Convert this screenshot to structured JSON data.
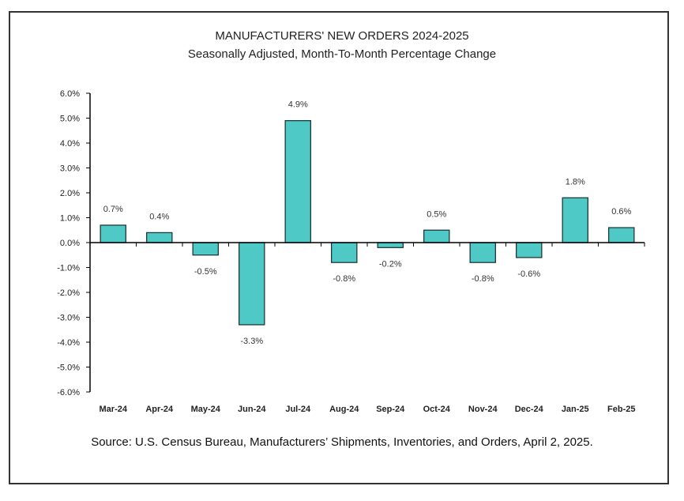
{
  "chart_data": {
    "type": "bar",
    "title": "MANUFACTURERS' NEW ORDERS 2024-2025",
    "subtitle": "Seasonally Adjusted,  Month-To-Month Percentage Change",
    "xlabel": "",
    "ylabel": "",
    "categories": [
      "Mar-24",
      "Apr-24",
      "May-24",
      "Jun-24",
      "Jul-24",
      "Aug-24",
      "Sep-24",
      "Oct-24",
      "Nov-24",
      "Dec-24",
      "Jan-25",
      "Feb-25"
    ],
    "values": [
      0.7,
      0.4,
      -0.5,
      -3.3,
      4.9,
      -0.8,
      -0.2,
      0.5,
      -0.8,
      -0.6,
      1.8,
      0.6
    ],
    "data_labels": [
      "0.7%",
      "0.4%",
      "-0.5%",
      "-3.3%",
      "4.9%",
      "-0.8%",
      "-0.2%",
      "0.5%",
      "-0.8%",
      "-0.6%",
      "1.8%",
      "0.6%"
    ],
    "ylim": [
      -6.0,
      6.0
    ],
    "yticks": [
      6.0,
      5.0,
      4.0,
      3.0,
      2.0,
      1.0,
      0.0,
      -1.0,
      -2.0,
      -3.0,
      -4.0,
      -5.0,
      -6.0
    ],
    "ytick_labels": [
      "6.0%",
      "5.0%",
      "4.0%",
      "3.0%",
      "2.0%",
      "1.0%",
      "0.0%",
      "-1.0%",
      "-2.0%",
      "-3.0%",
      "-4.0%",
      "-5.0%",
      "-6.0%"
    ],
    "grid": false,
    "legend": "none",
    "bar_color": "#4ec9c6",
    "bar_edge_color": "#1f3a3a",
    "source": "Source: U.S. Census Bureau, Manufacturers’ Shipments, Inventories, and Orders, April 2, 2025."
  }
}
